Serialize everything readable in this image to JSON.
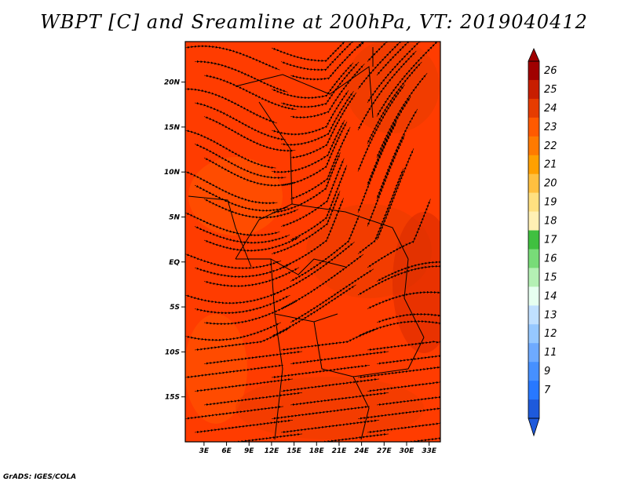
{
  "title": "WBPT [C] and Sreamline at 200hPa, VT: 2019040412",
  "credit": "GrADS: IGES/COLA",
  "map": {
    "lat_ticks": [
      "20N",
      "15N",
      "10N",
      "5N",
      "EQ",
      "5S",
      "10S",
      "15S"
    ],
    "lat_values": [
      20,
      15,
      10,
      5,
      0,
      -5,
      -10,
      -15
    ],
    "lon_ticks": [
      "3E",
      "6E",
      "9E",
      "12E",
      "15E",
      "18E",
      "21E",
      "24E",
      "27E",
      "30E",
      "33E"
    ],
    "lon_values": [
      3,
      6,
      9,
      12,
      15,
      18,
      21,
      24,
      27,
      30,
      33
    ],
    "lon_range": [
      0.5,
      34.5
    ],
    "lat_range": [
      -20,
      24.5
    ],
    "dominant_color": "#ff3c00"
  },
  "colorbar": {
    "levels": [
      "26",
      "25",
      "24",
      "23",
      "22",
      "21",
      "20",
      "19",
      "18",
      "17",
      "16",
      "15",
      "14",
      "13",
      "12",
      "11",
      "9",
      "7"
    ],
    "colors": [
      "#a00000",
      "#c81e00",
      "#e63c00",
      "#ff5a00",
      "#ff7a00",
      "#ffa000",
      "#ffc040",
      "#ffe080",
      "#fff0b4",
      "#40c040",
      "#78dc78",
      "#b4f0b4",
      "#e6fff0",
      "#c0e0ff",
      "#96c8ff",
      "#6eaaff",
      "#4690ff",
      "#2878ff",
      "#1e5adc"
    ]
  }
}
